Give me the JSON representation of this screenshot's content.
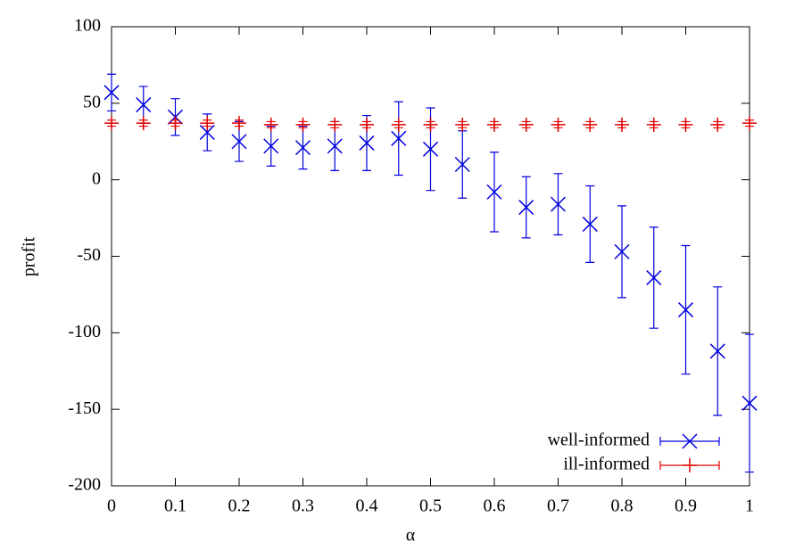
{
  "chart_data": {
    "type": "errorbar",
    "x_label": "α",
    "y_label": "profit",
    "x": [
      0,
      0.05,
      0.1,
      0.15,
      0.2,
      0.25,
      0.3,
      0.35,
      0.4,
      0.45,
      0.5,
      0.55,
      0.6,
      0.65,
      0.7,
      0.75,
      0.8,
      0.85,
      0.9,
      0.95,
      1
    ],
    "series": [
      {
        "name": "well-informed",
        "color": "#0000e0",
        "marker": "x",
        "values": [
          57,
          49,
          41,
          31,
          25,
          22,
          21,
          22,
          24,
          27,
          20,
          10,
          -8,
          -18,
          -16,
          -29,
          -47,
          -64,
          -85,
          -112,
          -146
        ],
        "errors": [
          12,
          12,
          12,
          12,
          13,
          13,
          14,
          16,
          18,
          24,
          27,
          22,
          26,
          20,
          20,
          25,
          30,
          33,
          42,
          42,
          45
        ]
      },
      {
        "name": "ill-informed",
        "color": "#e00000",
        "marker": "+",
        "values": [
          37,
          37,
          37,
          37,
          37,
          36,
          36,
          36,
          36,
          36,
          36,
          36,
          36,
          36,
          36,
          36,
          36,
          36,
          36,
          36,
          37
        ],
        "errors": [
          2,
          2,
          2,
          2,
          2,
          2,
          2,
          2,
          2,
          2,
          2,
          2,
          2,
          2,
          2,
          2,
          2,
          2,
          2,
          2,
          2
        ]
      }
    ],
    "xlim": [
      0,
      1
    ],
    "ylim": [
      -200,
      100
    ],
    "xticks": [
      0,
      0.1,
      0.2,
      0.3,
      0.4,
      0.5,
      0.6,
      0.7,
      0.8,
      0.9,
      1
    ],
    "yticks": [
      -200,
      -150,
      -100,
      -50,
      0,
      50,
      100
    ],
    "grid": false,
    "legend": "bottom-right"
  }
}
